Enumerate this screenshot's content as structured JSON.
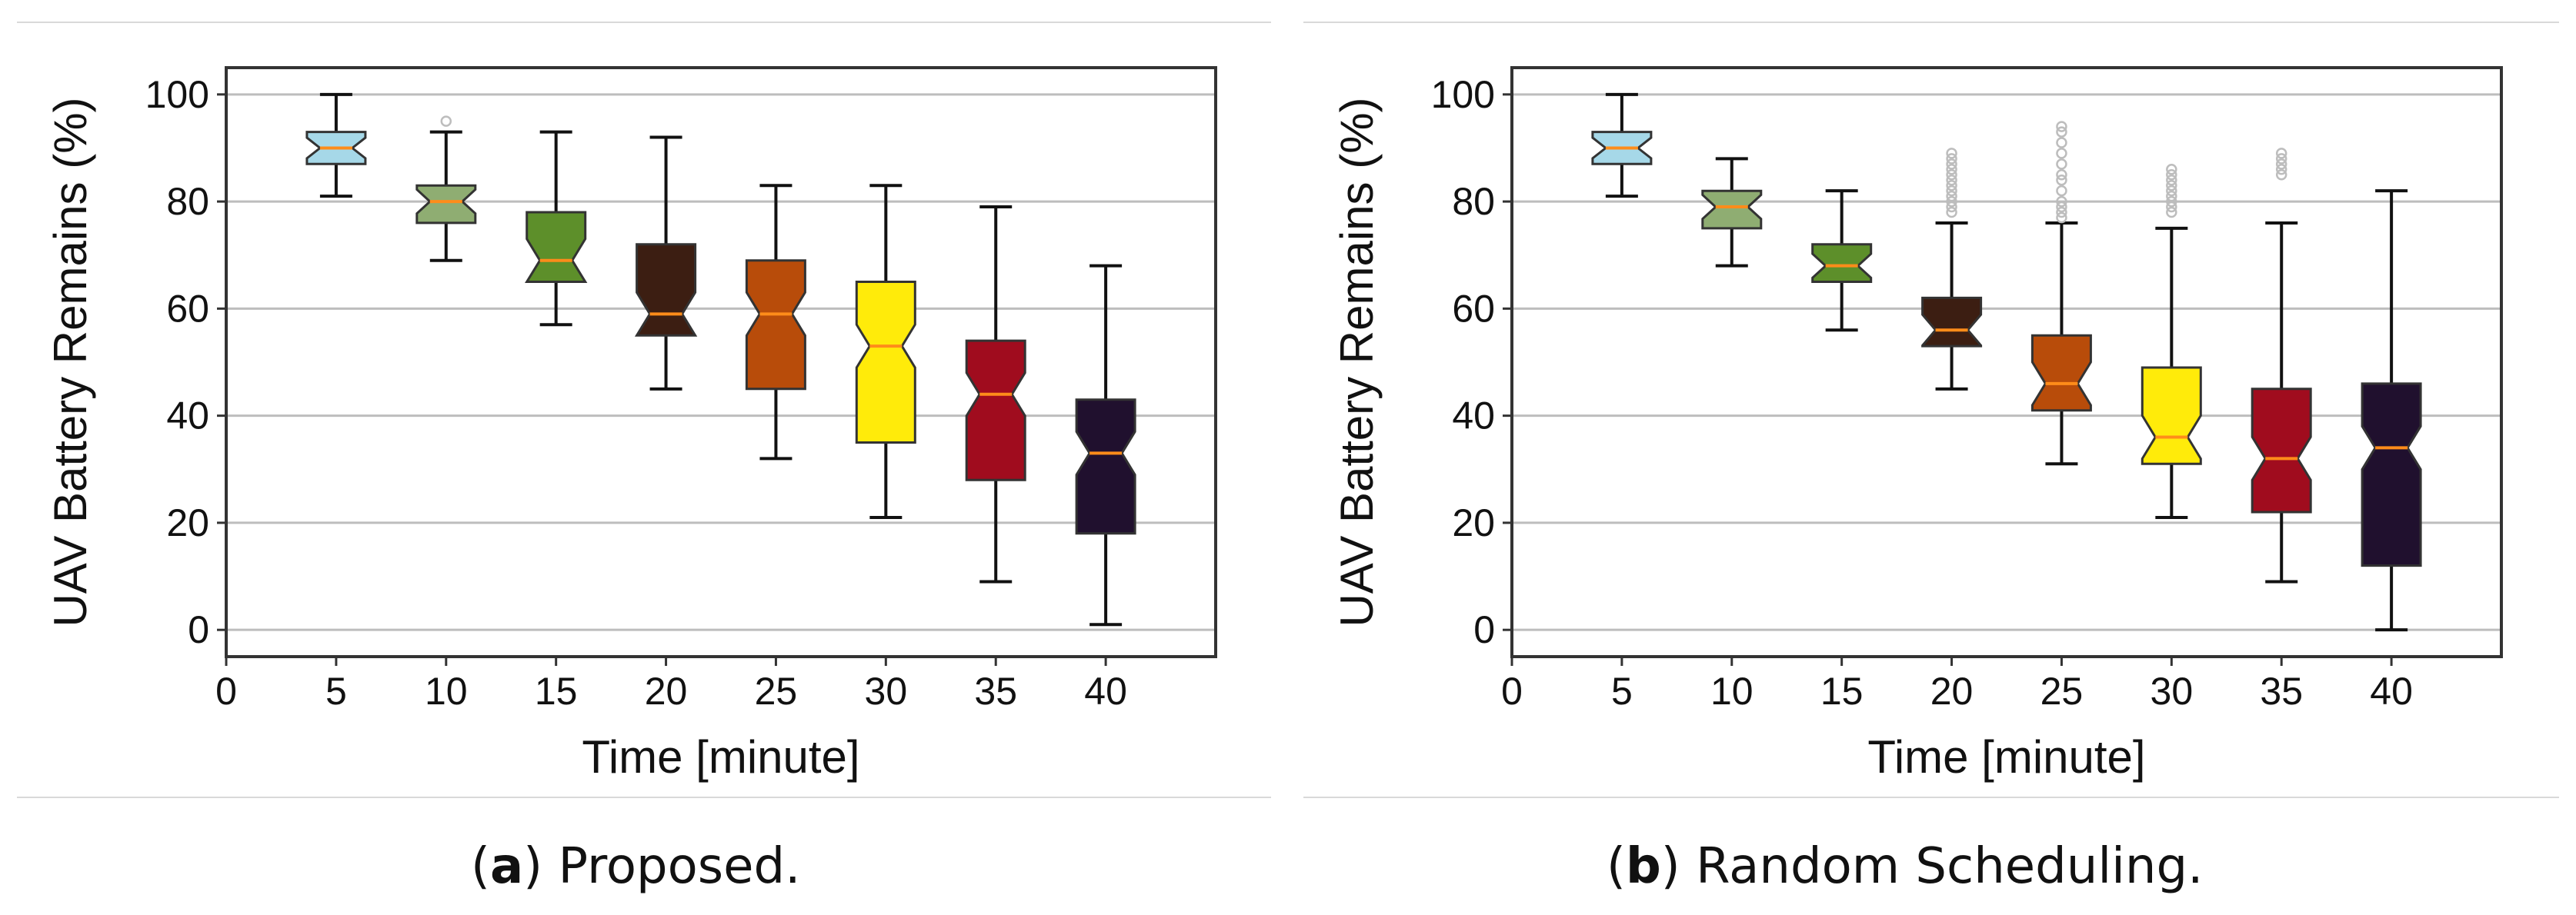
{
  "chart_data": [
    {
      "type": "boxplot",
      "panel_label": "a",
      "caption": ") Proposed.",
      "xlabel": "Time [minute]",
      "ylabel": "UAV Battery Remains (%)",
      "xlim": [
        0,
        45
      ],
      "ylim": [
        -5,
        105
      ],
      "xticks": [
        "0",
        "5",
        "10",
        "15",
        "20",
        "25",
        "30",
        "35",
        "40"
      ],
      "yticks": [
        "0",
        "20",
        "40",
        "60",
        "80",
        "100"
      ],
      "grid": "horizontal",
      "categories": [
        5,
        10,
        15,
        20,
        25,
        30,
        35,
        40
      ],
      "boxes": [
        {
          "x": 5,
          "whislo": 81,
          "q1": 87,
          "med": 90,
          "q3": 93,
          "whishi": 100,
          "color": "#a6d8e8",
          "fliers": []
        },
        {
          "x": 10,
          "whislo": 69,
          "q1": 76,
          "med": 80,
          "q3": 83,
          "whishi": 93,
          "color": "#8fad72",
          "fliers": [
            95
          ]
        },
        {
          "x": 15,
          "whislo": 57,
          "q1": 65,
          "med": 69,
          "q3": 78,
          "whishi": 93,
          "color": "#5d8f2a",
          "fliers": []
        },
        {
          "x": 20,
          "whislo": 45,
          "q1": 55,
          "med": 59,
          "q3": 72,
          "whishi": 92,
          "color": "#3c1e12",
          "fliers": []
        },
        {
          "x": 25,
          "whislo": 32,
          "q1": 45,
          "med": 59,
          "q3": 69,
          "whishi": 83,
          "color": "#b84c0a",
          "fliers": []
        },
        {
          "x": 30,
          "whislo": 21,
          "q1": 35,
          "med": 53,
          "q3": 65,
          "whishi": 83,
          "color": "#ffeb0a",
          "fliers": []
        },
        {
          "x": 35,
          "whislo": 9,
          "q1": 28,
          "med": 44,
          "q3": 54,
          "whishi": 79,
          "color": "#a00c1e",
          "fliers": []
        },
        {
          "x": 40,
          "whislo": 1,
          "q1": 18,
          "med": 33,
          "q3": 43,
          "whishi": 68,
          "color": "#20102e",
          "fliers": []
        }
      ]
    },
    {
      "type": "boxplot",
      "panel_label": "b",
      "caption": ") Random Scheduling.",
      "xlabel": "Time [minute]",
      "ylabel": "UAV Battery Remains (%)",
      "xlim": [
        0,
        45
      ],
      "ylim": [
        -5,
        105
      ],
      "xticks": [
        "0",
        "5",
        "10",
        "15",
        "20",
        "25",
        "30",
        "35",
        "40"
      ],
      "yticks": [
        "0",
        "20",
        "40",
        "60",
        "80",
        "100"
      ],
      "grid": "horizontal",
      "categories": [
        5,
        10,
        15,
        20,
        25,
        30,
        35,
        40
      ],
      "boxes": [
        {
          "x": 5,
          "whislo": 81,
          "q1": 87,
          "med": 90,
          "q3": 93,
          "whishi": 100,
          "color": "#a6d8e8",
          "fliers": []
        },
        {
          "x": 10,
          "whislo": 68,
          "q1": 75,
          "med": 79,
          "q3": 82,
          "whishi": 88,
          "color": "#8fad72",
          "fliers": []
        },
        {
          "x": 15,
          "whislo": 56,
          "q1": 65,
          "med": 68,
          "q3": 72,
          "whishi": 82,
          "color": "#5d8f2a",
          "fliers": []
        },
        {
          "x": 20,
          "whislo": 45,
          "q1": 53,
          "med": 56,
          "q3": 62,
          "whishi": 76,
          "color": "#3c1e12",
          "fliers": [
            78,
            79,
            80,
            81,
            82,
            83,
            84,
            85,
            86,
            87,
            88,
            89
          ]
        },
        {
          "x": 25,
          "whislo": 31,
          "q1": 41,
          "med": 46,
          "q3": 55,
          "whishi": 76,
          "color": "#b84c0a",
          "fliers": [
            77,
            78,
            79,
            80,
            82,
            84,
            85,
            87,
            89,
            91,
            93,
            94
          ]
        },
        {
          "x": 30,
          "whislo": 21,
          "q1": 31,
          "med": 36,
          "q3": 49,
          "whishi": 75,
          "color": "#ffeb0a",
          "fliers": [
            78,
            79,
            80,
            81,
            82,
            83,
            84,
            85,
            86
          ]
        },
        {
          "x": 35,
          "whislo": 9,
          "q1": 22,
          "med": 32,
          "q3": 45,
          "whishi": 76,
          "color": "#a00c1e",
          "fliers": [
            85,
            86,
            87,
            88,
            89
          ]
        },
        {
          "x": 40,
          "whislo": 0,
          "q1": 12,
          "med": 34,
          "q3": 46,
          "whishi": 82,
          "color": "#20102e",
          "fliers": []
        }
      ]
    }
  ]
}
